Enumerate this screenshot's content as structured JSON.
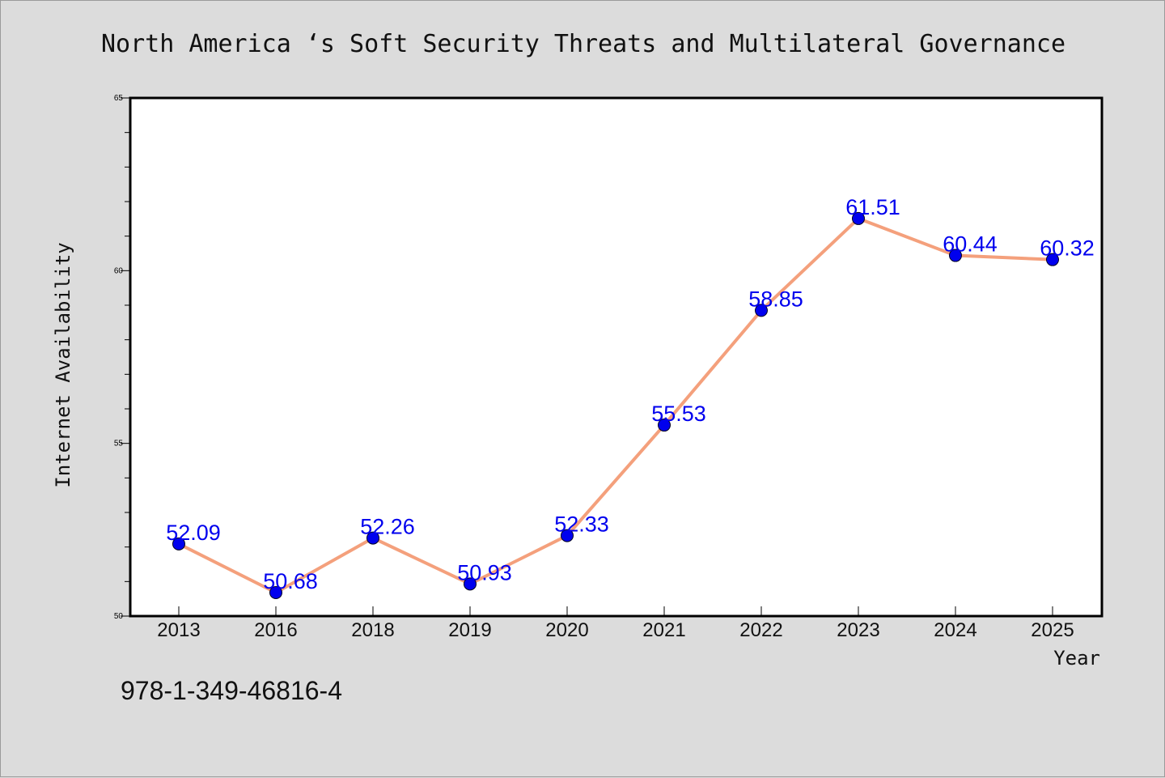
{
  "chart_data": {
    "type": "line",
    "title": "North America ‘s Soft Security Threats and Multilateral Governance",
    "xlabel": "Year",
    "ylabel": "Internet Availability",
    "categories": [
      "2013",
      "2016",
      "2018",
      "2019",
      "2020",
      "2021",
      "2022",
      "2023",
      "2024",
      "2025"
    ],
    "series": [
      {
        "values": [
          52.09,
          50.68,
          52.26,
          50.93,
          52.33,
          55.53,
          58.85,
          61.51,
          60.44,
          60.32
        ]
      }
    ],
    "data_labels": [
      "52.09",
      "50.68",
      "52.26",
      "50.93",
      "52.33",
      "55.53",
      "58.85",
      "61.51",
      "60.44",
      "60.32"
    ],
    "ylim": [
      50,
      65
    ],
    "yticks": [
      "50",
      "55",
      "60",
      "65"
    ],
    "grid": false,
    "line_color": "#f4a07c",
    "marker_color": "#0000ee",
    "label_color": "#0000ee"
  },
  "footer": {
    "isbn": "978-1-349-46816-4"
  }
}
